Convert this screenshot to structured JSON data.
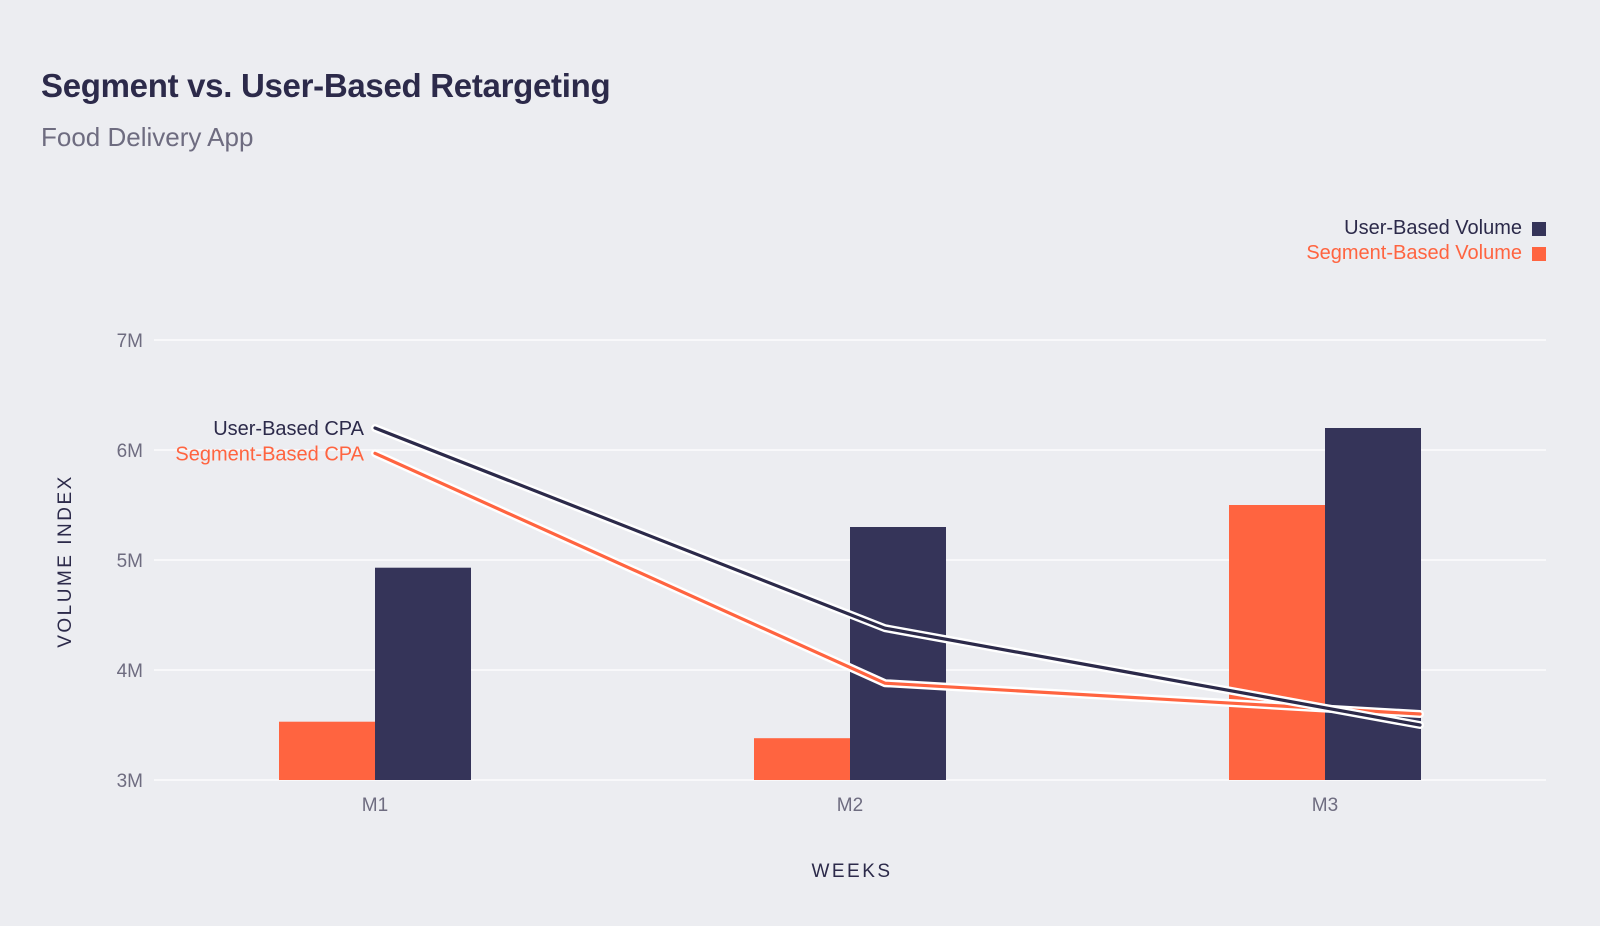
{
  "chart_data": {
    "type": "bar",
    "title": "Segment vs. User-Based Retargeting",
    "subtitle": "Food Delivery App",
    "xlabel": "WEEKS",
    "ylabel": "VOLUME INDEX",
    "categories": [
      "M1",
      "M2",
      "M3"
    ],
    "ylim": [
      3,
      7
    ],
    "yticks": [
      {
        "value": 3,
        "label": "3M"
      },
      {
        "value": 4,
        "label": "4M"
      },
      {
        "value": 5,
        "label": "5M"
      },
      {
        "value": 6,
        "label": "6M"
      },
      {
        "value": 7,
        "label": "7M"
      }
    ],
    "grid": true,
    "legend_position": "top-right",
    "series": [
      {
        "name": "Segment-Based Volume",
        "kind": "bar",
        "color": "#ff6440",
        "values": [
          3.53,
          3.38,
          5.5
        ]
      },
      {
        "name": "User-Based Volume",
        "kind": "bar",
        "color": "#353459",
        "values": [
          4.93,
          5.3,
          6.2
        ]
      }
    ],
    "lines": [
      {
        "name": "User-Based CPA",
        "kind": "line",
        "color": "#2c2a4a",
        "values": [
          6.2,
          4.38,
          3.5
        ]
      },
      {
        "name": "Segment-Based CPA",
        "kind": "line",
        "color": "#ff6440",
        "values": [
          5.97,
          3.88,
          3.6
        ]
      }
    ],
    "legend": [
      {
        "label": "User-Based Volume",
        "color": "#353459"
      },
      {
        "label": "Segment-Based Volume",
        "color": "#ff6440"
      }
    ]
  }
}
